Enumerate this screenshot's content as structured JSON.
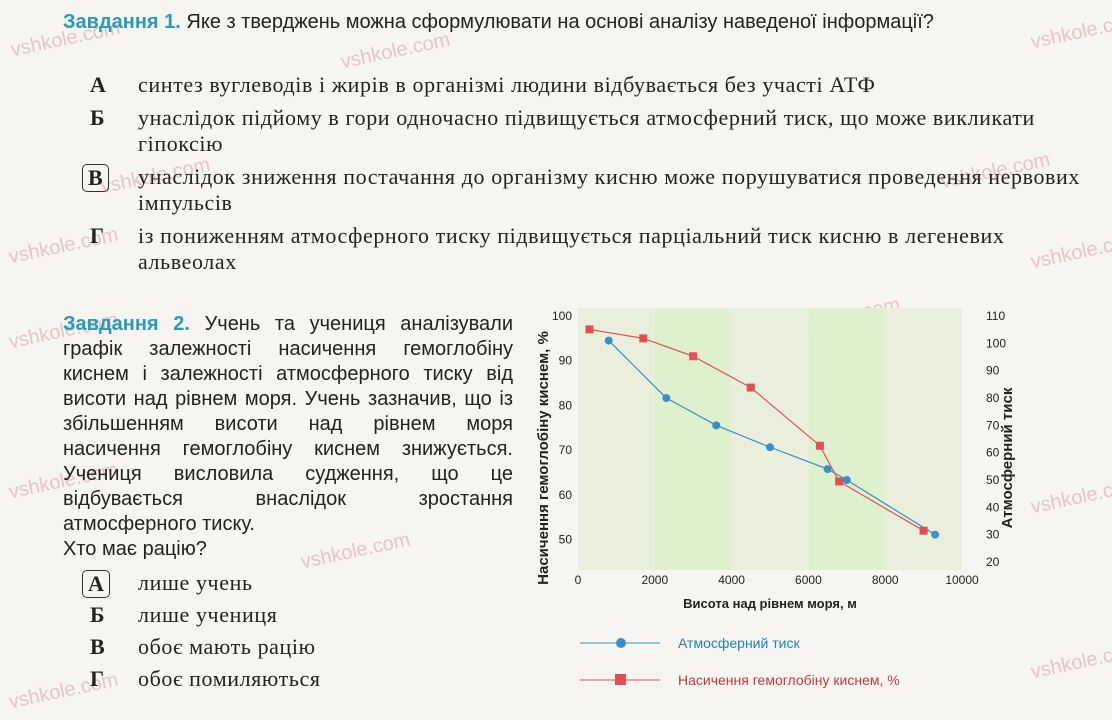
{
  "watermark": "vshkole.com",
  "task1": {
    "title": "Завдання 1.",
    "question": "Яке з тверджень можна сформулювати на основі аналізу наведеної інформації?",
    "options": [
      {
        "letter": "А",
        "text": "синтез вуглеводів і жирів в організмі людини відбувається без участі АТФ"
      },
      {
        "letter": "Б",
        "text": "унаслідок підйому в гори одночасно підвищується атмосферний тиск, що може викликати гіпоксію"
      },
      {
        "letter": "В",
        "text": "унаслідок зниження постачання до організму кисню може порушуватися проведення нервових імпульсів",
        "selected": true
      },
      {
        "letter": "Г",
        "text": "із пониженням атмосферного тиску підвищується парціальний тиск кисню в легеневих альвеолах"
      }
    ]
  },
  "task2": {
    "title": "Завдання 2.",
    "text": "Учень та учениця аналізували графік залежності насичення гемоглобіну киснем і залежності атмосферного тиску від висоти над рівнем моря. Учень зазначив, що із збільшенням висоти над рівнем моря насичення гемоглобіну киснем знижується. Учениця висловила судження, що це відбувається внаслідок зростання атмосферного тиску.",
    "question": "Хто має рацію?",
    "options": [
      {
        "letter": "А",
        "text": "лише учень",
        "selected": true
      },
      {
        "letter": "Б",
        "text": "лише учениця"
      },
      {
        "letter": "В",
        "text": "обоє мають рацію"
      },
      {
        "letter": "Г",
        "text": "обоє помиляються"
      }
    ]
  },
  "chart_data": {
    "type": "line",
    "xlabel": "Висота над рівнем моря, м",
    "ylabel": "Насичення гемоглобіну киснем, %",
    "y2label": "Атмосферний тиск",
    "xlim": [
      0,
      10000
    ],
    "ylim": [
      45,
      100
    ],
    "y2lim": [
      20,
      110
    ],
    "xticks": [
      "0",
      "2000",
      "4000",
      "6000",
      "8000",
      "10000"
    ],
    "yticks": [
      "50",
      "60",
      "70",
      "80",
      "90",
      "100"
    ],
    "y2ticks": [
      "20",
      "30",
      "40",
      "50",
      "60",
      "70",
      "80",
      "90",
      "100",
      "110"
    ],
    "series": [
      {
        "name": "Атмосферний тиск",
        "axis": "right",
        "color": "#3a8fc4",
        "marker": "circle",
        "x": [
          800,
          2300,
          3600,
          5000,
          6500,
          7000,
          9300
        ],
        "y": [
          101,
          80,
          70,
          62,
          54,
          50,
          30
        ]
      },
      {
        "name": "Насичення гемоглобіну киснем, %",
        "axis": "left",
        "color": "#e05050",
        "marker": "square",
        "x": [
          300,
          1700,
          3000,
          4500,
          6300,
          6800,
          9000
        ],
        "y": [
          97,
          95,
          91,
          84,
          71,
          63,
          52
        ]
      }
    ]
  }
}
